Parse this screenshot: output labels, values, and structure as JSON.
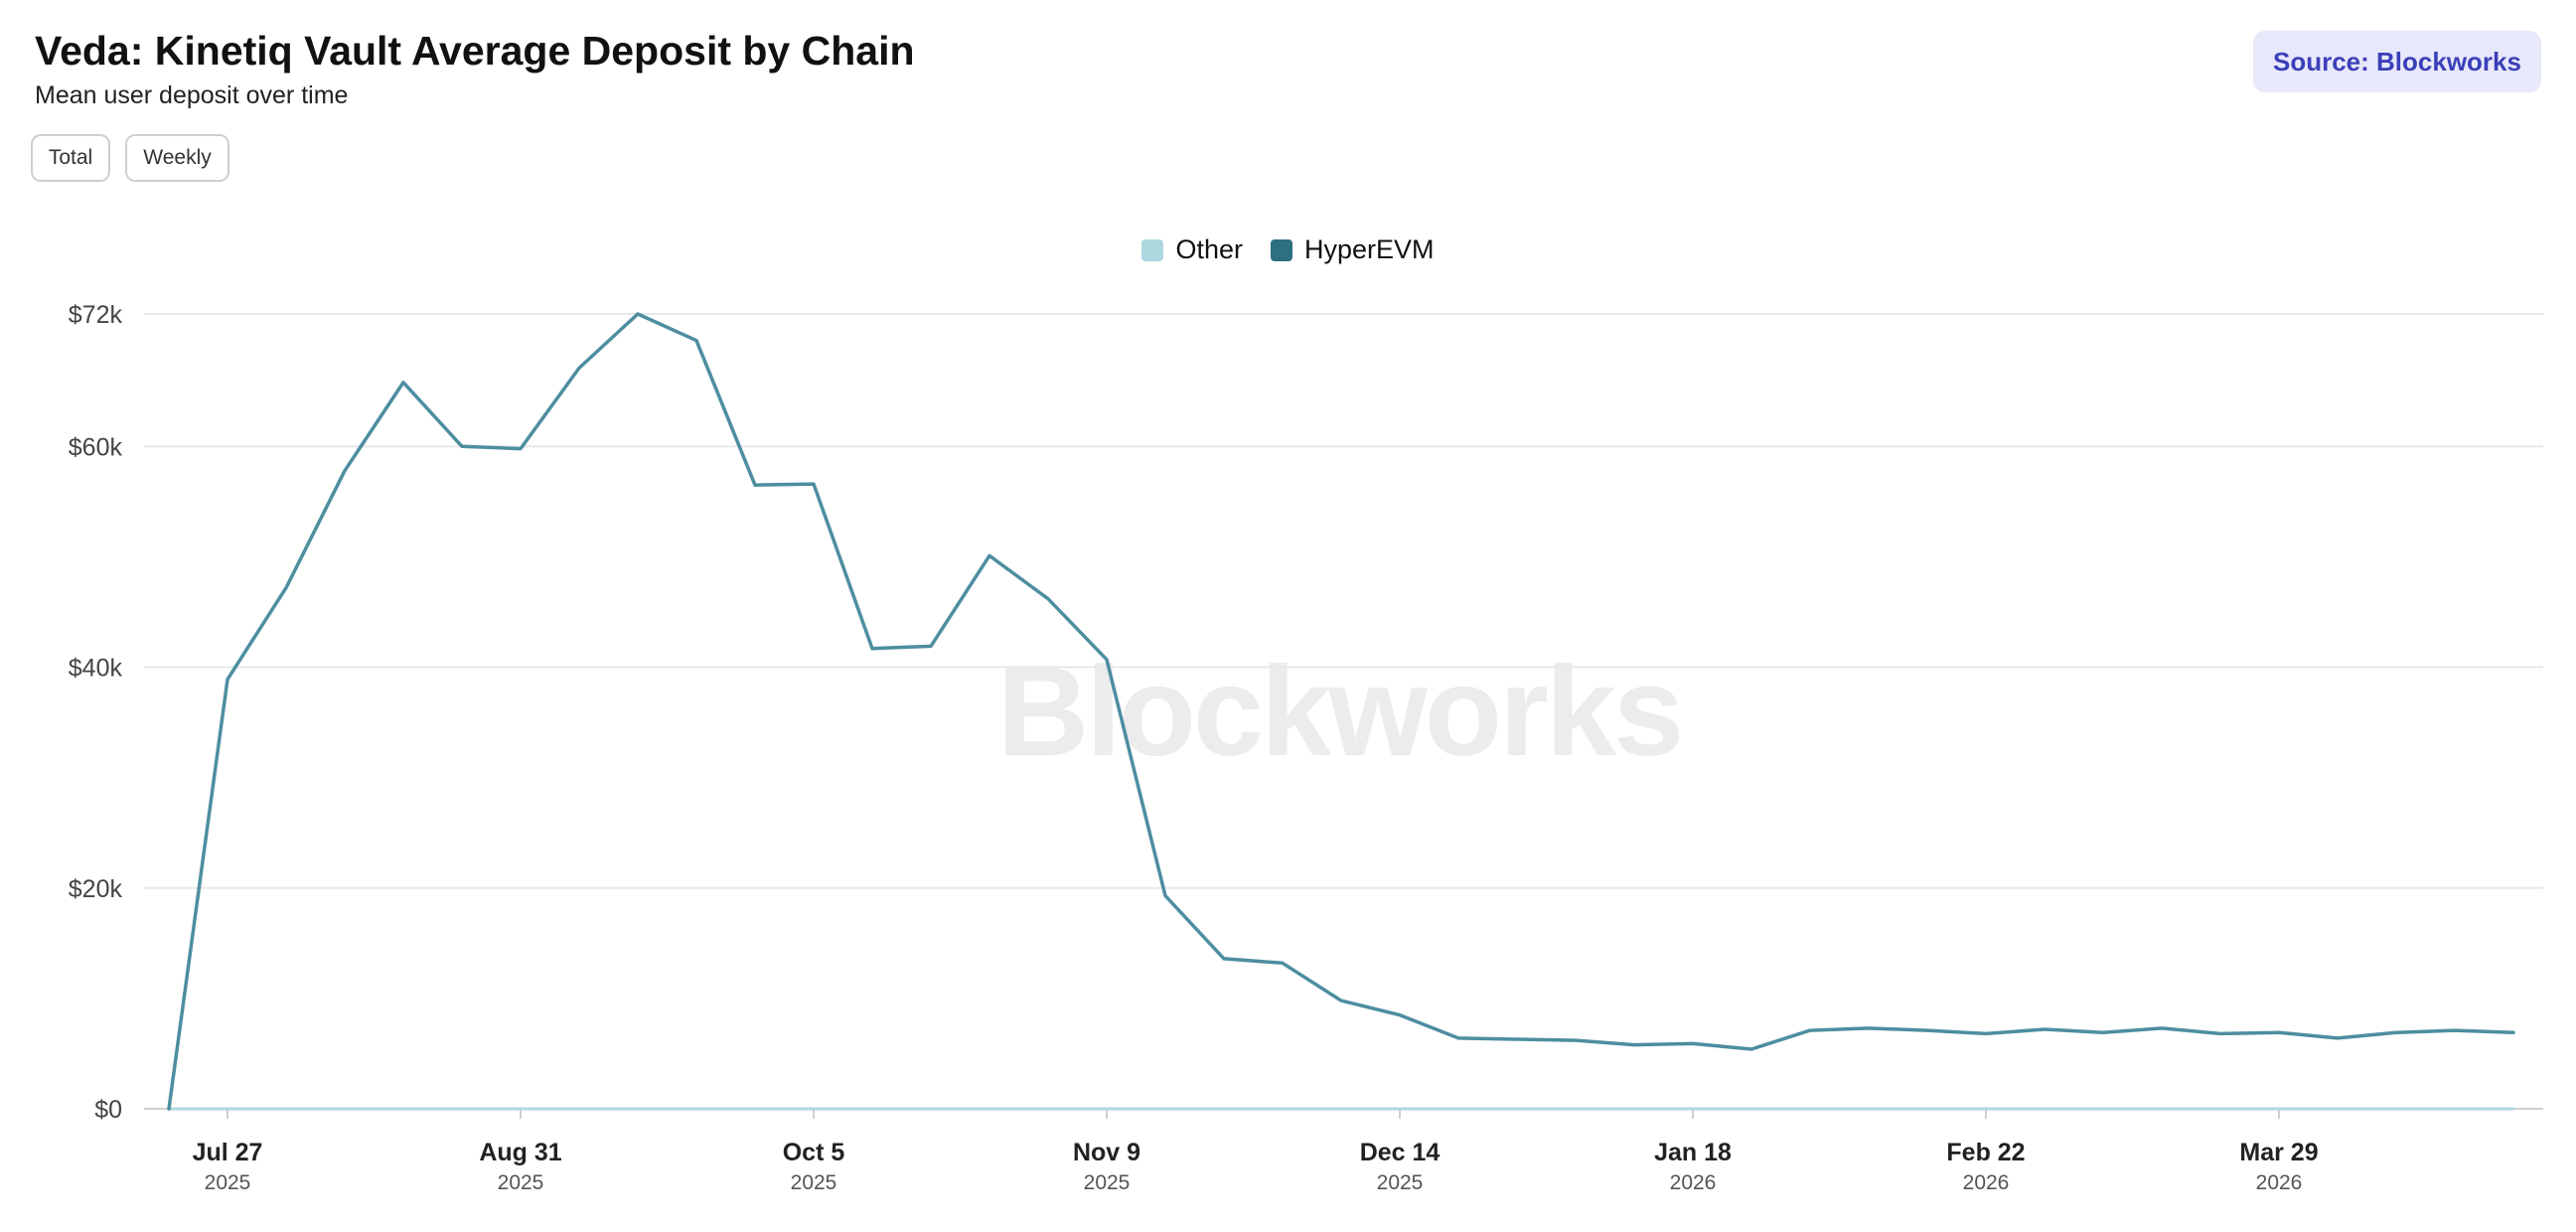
{
  "header": {
    "title": "Veda: Kinetiq Vault Average Deposit by Chain",
    "subtitle": "Mean user deposit over time",
    "source_label": "Source: Blockworks"
  },
  "controls": {
    "total_label": "Total",
    "weekly_label": "Weekly"
  },
  "watermark": "Blockworks",
  "colors": {
    "other": "#add8df",
    "hyperevm": "#2e6f82",
    "source_bg": "#e8e8fb",
    "source_text": "#3b3fb8"
  },
  "chart_data": {
    "type": "line",
    "title": "Veda: Kinetiq Vault Average Deposit by Chain",
    "subtitle": "Mean user deposit over time",
    "xlabel": "",
    "ylabel": "",
    "ylim": [
      0,
      72000
    ],
    "grid": true,
    "legend_position": "top-center",
    "y_ticks": [
      {
        "value": 0,
        "label": "$0"
      },
      {
        "value": 20000,
        "label": "$20k"
      },
      {
        "value": 40000,
        "label": "$40k"
      },
      {
        "value": 60000,
        "label": "$60k"
      },
      {
        "value": 72000,
        "label": "$72k"
      }
    ],
    "x_ticks": [
      {
        "date": "2025-07-27",
        "label": "Jul 27",
        "year": "2025"
      },
      {
        "date": "2025-08-31",
        "label": "Aug 31",
        "year": "2025"
      },
      {
        "date": "2025-10-05",
        "label": "Oct 5",
        "year": "2025"
      },
      {
        "date": "2025-11-09",
        "label": "Nov 9",
        "year": "2025"
      },
      {
        "date": "2025-12-14",
        "label": "Dec 14",
        "year": "2025"
      },
      {
        "date": "2026-01-18",
        "label": "Jan 18",
        "year": "2026"
      },
      {
        "date": "2026-02-22",
        "label": "Feb 22",
        "year": "2026"
      },
      {
        "date": "2026-03-29",
        "label": "Mar 29",
        "year": "2026"
      }
    ],
    "x": [
      "2025-07-20",
      "2025-07-27",
      "2025-08-03",
      "2025-08-10",
      "2025-08-17",
      "2025-08-24",
      "2025-08-31",
      "2025-09-07",
      "2025-09-14",
      "2025-09-21",
      "2025-09-28",
      "2025-10-05",
      "2025-10-12",
      "2025-10-19",
      "2025-10-26",
      "2025-11-02",
      "2025-11-09",
      "2025-11-16",
      "2025-11-23",
      "2025-11-30",
      "2025-12-07",
      "2025-12-14",
      "2025-12-21",
      "2025-12-28",
      "2026-01-04",
      "2026-01-11",
      "2026-01-18",
      "2026-01-25",
      "2026-02-01",
      "2026-02-08",
      "2026-02-15",
      "2026-02-22",
      "2026-03-01",
      "2026-03-08",
      "2026-03-15",
      "2026-03-22",
      "2026-03-29",
      "2026-04-05",
      "2026-04-12",
      "2026-04-19",
      "2026-04-26"
    ],
    "series": [
      {
        "name": "Other",
        "color": "#add8df",
        "values": [
          0,
          0,
          0,
          0,
          0,
          0,
          0,
          0,
          0,
          0,
          0,
          0,
          0,
          0,
          0,
          0,
          0,
          0,
          0,
          0,
          0,
          0,
          0,
          0,
          0,
          0,
          0,
          0,
          0,
          0,
          0,
          0,
          0,
          0,
          0,
          0,
          0,
          0,
          0,
          0,
          0
        ]
      },
      {
        "name": "HyperEVM",
        "color": "#2e6f82",
        "values": [
          0,
          38900,
          47200,
          57800,
          65800,
          60000,
          59800,
          67100,
          72000,
          69600,
          56500,
          56600,
          41700,
          41900,
          50100,
          46200,
          40700,
          19300,
          13600,
          13200,
          9800,
          8500,
          6400,
          6300,
          6200,
          5800,
          5900,
          5400,
          7100,
          7300,
          7100,
          6800,
          7200,
          6900,
          7300,
          6800,
          6900,
          6400,
          6900,
          7100,
          6900
        ]
      }
    ]
  }
}
